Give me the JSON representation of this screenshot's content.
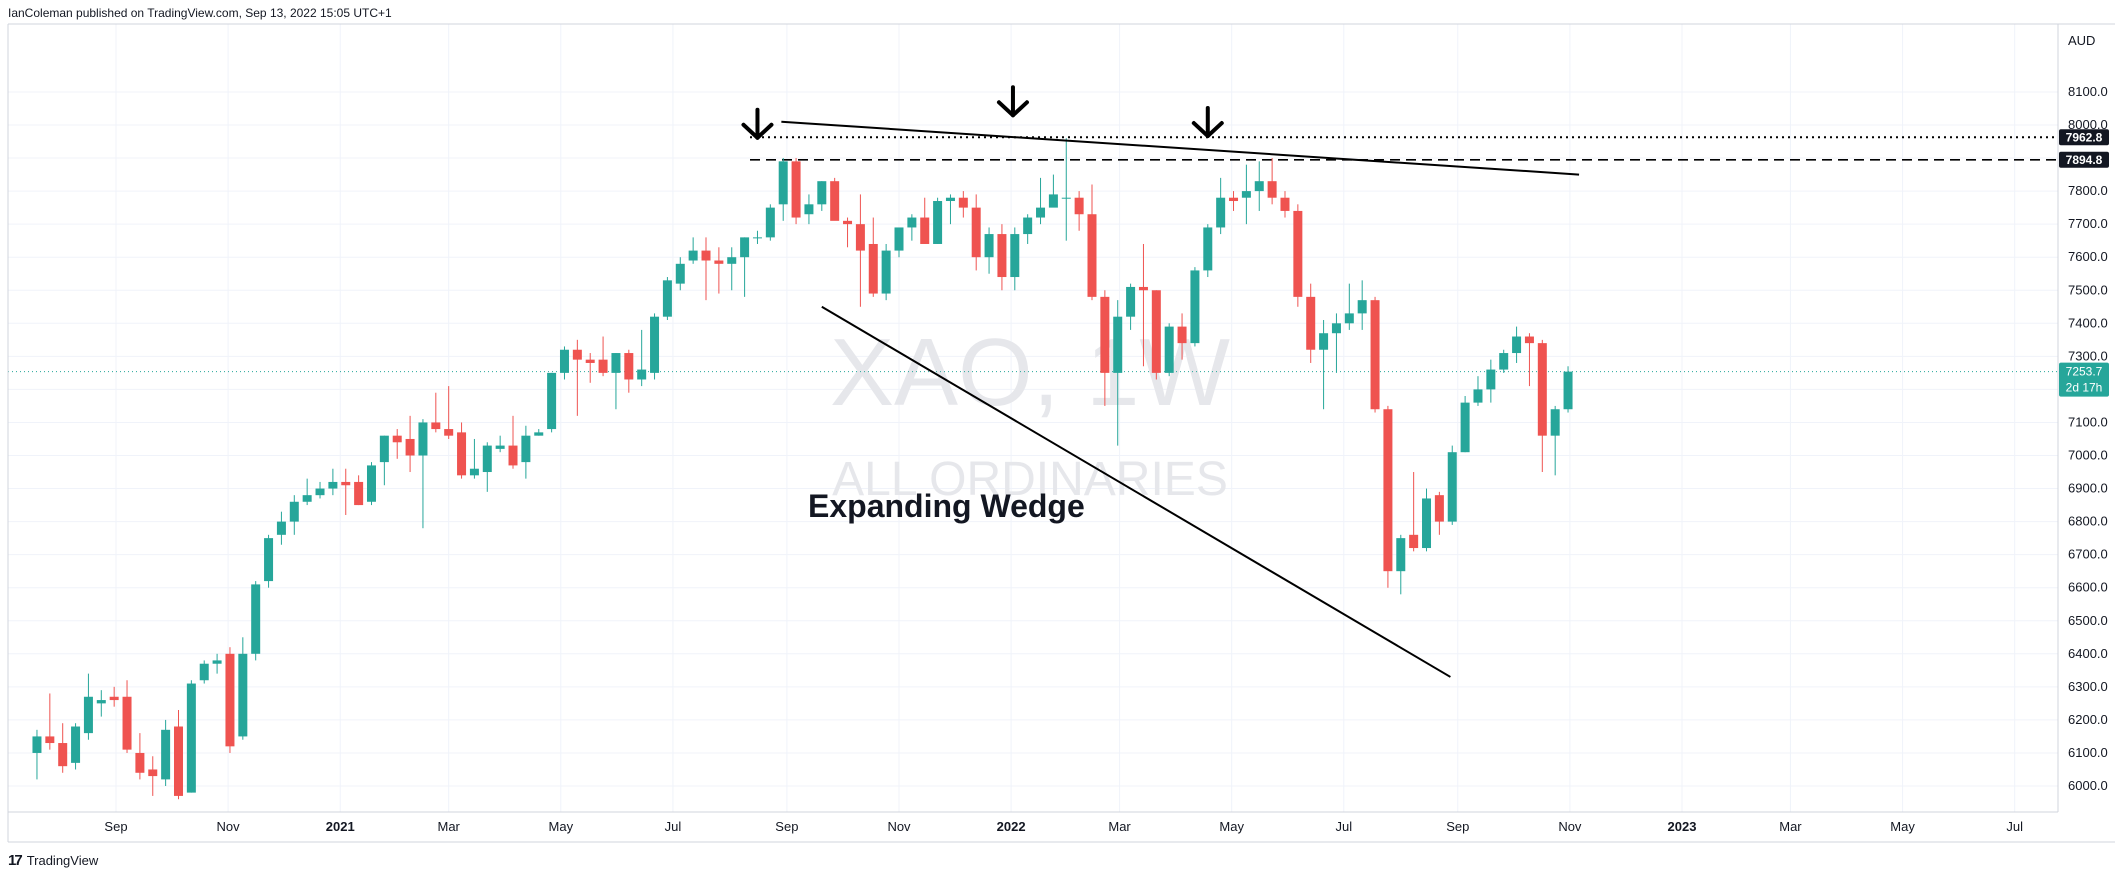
{
  "header": {
    "publisher_text": "IanColeman published on TradingView.com, Sep 13, 2022 15:05 UTC+1"
  },
  "footer": {
    "brand": "TradingView",
    "logo_icon": "tradingview-logo-icon"
  },
  "watermark": {
    "symbol": "XAO, 1W",
    "name": "ALL ORDINARIES"
  },
  "annotation": {
    "pattern_label": "Expanding Wedge"
  },
  "price_axis": {
    "currency": "AUD",
    "tick_labels": [
      "6000.0",
      "6100.0",
      "6200.0",
      "6300.0",
      "6400.0",
      "6500.0",
      "6600.0",
      "6700.0",
      "6800.0",
      "6900.0",
      "7000.0",
      "7100.0",
      "7200.0",
      "7300.0",
      "7400.0",
      "7500.0",
      "7600.0",
      "7700.0",
      "7800.0",
      "7900.0",
      "8000.0",
      "8100.0"
    ],
    "last_price_label": "7253.7",
    "countdown_label": "2d 17h",
    "level_labels": [
      "7962.8",
      "7894.8"
    ]
  },
  "time_axis": {
    "labels": [
      "Sep",
      "Nov",
      "2021",
      "Mar",
      "May",
      "Jul",
      "Sep",
      "Nov",
      "2022",
      "Mar",
      "May",
      "Jul",
      "Sep",
      "Nov",
      "2023",
      "Mar",
      "May",
      "Jul"
    ]
  },
  "colors": {
    "up": "#26a69a",
    "down": "#ef5350",
    "last_price": "#26a69a",
    "annotation": "#000000"
  },
  "chart_data": {
    "type": "candlestick",
    "symbol": "XAO",
    "interval": "1W",
    "ylim": [
      5950,
      8150
    ],
    "levels": [
      {
        "value": 7962.8,
        "style": "dotted"
      },
      {
        "value": 7894.8,
        "style": "dashed"
      }
    ],
    "last_price": 7253.7,
    "trendlines": [
      {
        "name": "upper",
        "start": [
          "2021-08-29",
          8010
        ],
        "end": [
          "2022-11-06",
          7850
        ]
      },
      {
        "name": "lower",
        "start": [
          "2021-09-20",
          7450
        ],
        "end": [
          "2022-08-28",
          6330
        ]
      }
    ],
    "arrows": [
      {
        "date": "2021-08-16",
        "price": 7894.8
      },
      {
        "date": "2022-01-02",
        "price": 7962.8
      },
      {
        "date": "2022-04-18",
        "price": 7900
      }
    ],
    "candles": [
      [
        "2020-07-20",
        6100,
        6170,
        6020,
        6150
      ],
      [
        "2020-07-27",
        6150,
        6280,
        6110,
        6130
      ],
      [
        "2020-08-03",
        6130,
        6190,
        6040,
        6060
      ],
      [
        "2020-08-10",
        6070,
        6190,
        6050,
        6180
      ],
      [
        "2020-08-17",
        6160,
        6340,
        6140,
        6270
      ],
      [
        "2020-08-24",
        6250,
        6290,
        6210,
        6260
      ],
      [
        "2020-08-31",
        6270,
        6300,
        6240,
        6260
      ],
      [
        "2020-09-07",
        6270,
        6320,
        6100,
        6110
      ],
      [
        "2020-09-14",
        6100,
        6160,
        6020,
        6040
      ],
      [
        "2020-09-21",
        6050,
        6090,
        5970,
        6030
      ],
      [
        "2020-09-28",
        6020,
        6200,
        6000,
        6170
      ],
      [
        "2020-10-05",
        6180,
        6230,
        5960,
        5970
      ],
      [
        "2020-10-12",
        5980,
        6320,
        5980,
        6310
      ],
      [
        "2020-10-19",
        6320,
        6380,
        6310,
        6370
      ],
      [
        "2020-10-26",
        6370,
        6400,
        6340,
        6380
      ],
      [
        "2020-11-02",
        6400,
        6420,
        6100,
        6120
      ],
      [
        "2020-11-09",
        6150,
        6450,
        6140,
        6400
      ],
      [
        "2020-11-16",
        6400,
        6620,
        6380,
        6610
      ],
      [
        "2020-11-23",
        6620,
        6760,
        6600,
        6750
      ],
      [
        "2020-11-30",
        6760,
        6830,
        6730,
        6800
      ],
      [
        "2020-12-07",
        6800,
        6880,
        6760,
        6860
      ],
      [
        "2020-12-14",
        6860,
        6930,
        6850,
        6880
      ],
      [
        "2020-12-21",
        6880,
        6920,
        6870,
        6900
      ],
      [
        "2020-12-28",
        6900,
        6960,
        6880,
        6920
      ],
      [
        "2021-01-04",
        6920,
        6960,
        6820,
        6910
      ],
      [
        "2021-01-11",
        6920,
        6940,
        6850,
        6850
      ],
      [
        "2021-01-18",
        6860,
        6980,
        6850,
        6970
      ],
      [
        "2021-01-25",
        6980,
        7060,
        6910,
        7060
      ],
      [
        "2021-02-01",
        7060,
        7080,
        6990,
        7040
      ],
      [
        "2021-02-08",
        7050,
        7120,
        6950,
        7000
      ],
      [
        "2021-02-15",
        7000,
        7110,
        6780,
        7100
      ],
      [
        "2021-02-22",
        7100,
        7190,
        7070,
        7080
      ],
      [
        "2021-03-01",
        7080,
        7210,
        7050,
        7060
      ],
      [
        "2021-03-08",
        7070,
        7100,
        6930,
        6940
      ],
      [
        "2021-03-15",
        6940,
        7050,
        6930,
        6960
      ],
      [
        "2021-03-22",
        6950,
        7040,
        6890,
        7030
      ],
      [
        "2021-03-29",
        7020,
        7060,
        7010,
        7030
      ],
      [
        "2021-04-05",
        7030,
        7120,
        6960,
        6970
      ],
      [
        "2021-04-12",
        6980,
        7090,
        6930,
        7060
      ],
      [
        "2021-04-19",
        7060,
        7080,
        7060,
        7070
      ],
      [
        "2021-04-26",
        7080,
        7250,
        7070,
        7250
      ],
      [
        "2021-05-03",
        7250,
        7330,
        7230,
        7320
      ],
      [
        "2021-05-10",
        7320,
        7350,
        7120,
        7290
      ],
      [
        "2021-05-17",
        7290,
        7310,
        7220,
        7280
      ],
      [
        "2021-05-24",
        7290,
        7360,
        7240,
        7250
      ],
      [
        "2021-05-31",
        7250,
        7310,
        7140,
        7310
      ],
      [
        "2021-06-07",
        7310,
        7320,
        7190,
        7230
      ],
      [
        "2021-06-14",
        7230,
        7380,
        7210,
        7260
      ],
      [
        "2021-06-21",
        7250,
        7430,
        7230,
        7420
      ],
      [
        "2021-06-28",
        7420,
        7540,
        7410,
        7530
      ],
      [
        "2021-07-05",
        7520,
        7600,
        7500,
        7580
      ],
      [
        "2021-07-12",
        7590,
        7660,
        7580,
        7620
      ],
      [
        "2021-07-19",
        7620,
        7660,
        7470,
        7590
      ],
      [
        "2021-07-26",
        7590,
        7630,
        7490,
        7580
      ],
      [
        "2021-08-02",
        7580,
        7630,
        7500,
        7600
      ],
      [
        "2021-08-09",
        7600,
        7660,
        7480,
        7660
      ],
      [
        "2021-08-16",
        7660,
        7680,
        7640,
        7660
      ],
      [
        "2021-08-23",
        7660,
        7760,
        7650,
        7750
      ],
      [
        "2021-08-30",
        7760,
        7900,
        7710,
        7890
      ],
      [
        "2021-09-06",
        7890,
        7900,
        7700,
        7720
      ],
      [
        "2021-09-13",
        7730,
        7790,
        7700,
        7760
      ],
      [
        "2021-09-20",
        7760,
        7830,
        7740,
        7830
      ],
      [
        "2021-09-27",
        7830,
        7840,
        7720,
        7710
      ],
      [
        "2021-10-04",
        7710,
        7720,
        7630,
        7700
      ],
      [
        "2021-10-11",
        7700,
        7790,
        7450,
        7620
      ],
      [
        "2021-10-18",
        7640,
        7720,
        7480,
        7490
      ],
      [
        "2021-10-25",
        7490,
        7640,
        7470,
        7620
      ],
      [
        "2021-11-01",
        7620,
        7690,
        7600,
        7690
      ],
      [
        "2021-11-08",
        7690,
        7730,
        7650,
        7720
      ],
      [
        "2021-11-15",
        7720,
        7780,
        7640,
        7640
      ],
      [
        "2021-11-22",
        7640,
        7780,
        7640,
        7770
      ],
      [
        "2021-11-29",
        7770,
        7790,
        7700,
        7780
      ],
      [
        "2021-12-06",
        7780,
        7800,
        7720,
        7750
      ],
      [
        "2021-12-13",
        7750,
        7790,
        7560,
        7600
      ],
      [
        "2021-12-20",
        7600,
        7690,
        7550,
        7670
      ],
      [
        "2021-12-27",
        7670,
        7700,
        7500,
        7540
      ],
      [
        "2022-01-03",
        7540,
        7690,
        7500,
        7670
      ],
      [
        "2022-01-10",
        7670,
        7730,
        7640,
        7720
      ],
      [
        "2022-01-17",
        7720,
        7840,
        7700,
        7750
      ],
      [
        "2022-01-24",
        7750,
        7850,
        7760,
        7790
      ],
      [
        "2022-01-31",
        7780,
        7960,
        7650,
        7780
      ],
      [
        "2022-02-07",
        7780,
        7800,
        7680,
        7730
      ],
      [
        "2022-02-14",
        7730,
        7820,
        7470,
        7480
      ],
      [
        "2022-02-21",
        7480,
        7500,
        7150,
        7250
      ],
      [
        "2022-02-28",
        7250,
        7470,
        7030,
        7420
      ],
      [
        "2022-03-07",
        7420,
        7520,
        7380,
        7510
      ],
      [
        "2022-03-14",
        7510,
        7640,
        7270,
        7500
      ],
      [
        "2022-03-21",
        7500,
        7500,
        7230,
        7250
      ],
      [
        "2022-03-28",
        7250,
        7400,
        7240,
        7390
      ],
      [
        "2022-04-04",
        7390,
        7430,
        7290,
        7340
      ],
      [
        "2022-04-11",
        7340,
        7570,
        7330,
        7560
      ],
      [
        "2022-04-18",
        7560,
        7700,
        7540,
        7690
      ],
      [
        "2022-04-25",
        7690,
        7840,
        7670,
        7780
      ],
      [
        "2022-05-02",
        7780,
        7800,
        7740,
        7770
      ],
      [
        "2022-05-09",
        7780,
        7880,
        7700,
        7800
      ],
      [
        "2022-05-16",
        7800,
        7890,
        7740,
        7830
      ],
      [
        "2022-05-23",
        7830,
        7900,
        7760,
        7780
      ],
      [
        "2022-05-30",
        7780,
        7800,
        7720,
        7740
      ],
      [
        "2022-06-06",
        7740,
        7760,
        7450,
        7480
      ],
      [
        "2022-06-13",
        7480,
        7520,
        7280,
        7320
      ],
      [
        "2022-06-20",
        7320,
        7410,
        7140,
        7370
      ],
      [
        "2022-06-27",
        7370,
        7430,
        7250,
        7400
      ],
      [
        "2022-07-04",
        7400,
        7520,
        7380,
        7430
      ],
      [
        "2022-07-11",
        7430,
        7530,
        7380,
        7470
      ],
      [
        "2022-07-18",
        7470,
        7480,
        7130,
        7140
      ],
      [
        "2022-07-25",
        7140,
        7150,
        6600,
        6650
      ],
      [
        "2022-08-01",
        6650,
        6760,
        6580,
        6750
      ],
      [
        "2022-08-08",
        6760,
        6950,
        6710,
        6720
      ],
      [
        "2022-08-15",
        6720,
        6900,
        6710,
        6870
      ],
      [
        "2022-08-22",
        6880,
        6890,
        6760,
        6800
      ],
      [
        "2022-08-29",
        6800,
        7030,
        6790,
        7010
      ],
      [
        "2022-09-05",
        7010,
        7180,
        7010,
        7160
      ],
      [
        "2022-09-12",
        7160,
        7240,
        7150,
        7200
      ],
      [
        "2022-09-19",
        7200,
        7290,
        7160,
        7260
      ],
      [
        "2022-09-26",
        7260,
        7320,
        7250,
        7310
      ],
      [
        "2022-10-03",
        7310,
        7390,
        7280,
        7360
      ],
      [
        "2022-10-10",
        7360,
        7370,
        7210,
        7340
      ],
      [
        "2022-10-17",
        7340,
        7350,
        6950,
        7060
      ],
      [
        "2022-10-24",
        7060,
        7150,
        6940,
        7140
      ],
      [
        "2022-10-31",
        7140,
        7270,
        7130,
        7253.7
      ]
    ]
  }
}
